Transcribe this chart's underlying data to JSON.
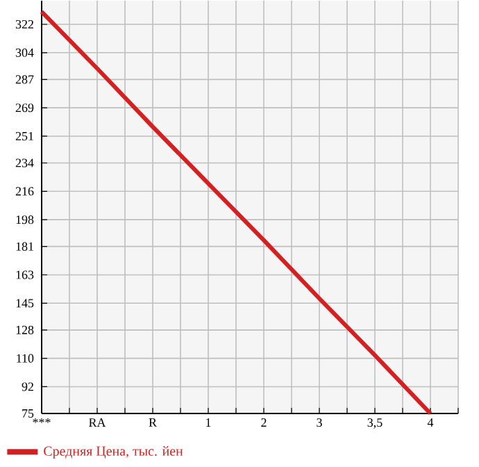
{
  "chart_data": {
    "type": "line",
    "categories": [
      "***",
      "RA",
      "R",
      "1",
      "2",
      "3",
      "3,5",
      "4"
    ],
    "series": [
      {
        "name": "Средняя Цена, тыс. йен",
        "color": "#d42020",
        "values": [
          330,
          294,
          257,
          221,
          185,
          148,
          112,
          75
        ]
      }
    ],
    "ylim": [
      75,
      337
    ],
    "yticks": [
      75,
      92,
      110,
      128,
      145,
      163,
      181,
      198,
      216,
      234,
      251,
      269,
      287,
      304,
      322
    ],
    "grid": true,
    "legend": "bottom left",
    "marker": "none",
    "line_style": "solid"
  }
}
